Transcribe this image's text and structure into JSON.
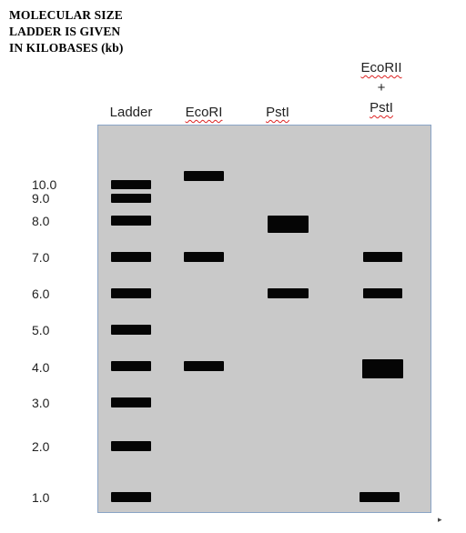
{
  "title_lines": [
    "MOLECULAR SIZE",
    "LADDER IS GIVEN",
    "IN KILOBASES (kb)"
  ],
  "lanes": [
    {
      "label": "Ladder",
      "sublabels": []
    },
    {
      "label": "EcoRI",
      "sublabels": []
    },
    {
      "label": "PstI",
      "sublabels": []
    },
    {
      "label": "EcoRII",
      "sublabels": [
        "+",
        "PstI"
      ]
    }
  ],
  "size_labels": [
    "10.0",
    "9.0",
    "8.0",
    "7.0",
    "6.0",
    "5.0",
    "4.0",
    "3.0",
    "2.0",
    "1.0"
  ],
  "bands": {
    "ladder": [
      10.0,
      9.0,
      8.0,
      7.0,
      6.0,
      5.0,
      4.0,
      3.0,
      2.0,
      1.0
    ],
    "ecori": [
      10.5,
      7.0,
      4.0
    ],
    "psti": [
      8.0,
      6.0
    ],
    "ecorii_psti": [
      7.0,
      6.0,
      4.0,
      1.0
    ]
  },
  "colors": {
    "gel": "#c9c9c9",
    "band": "#050505",
    "gel_border": "#8aa4c6"
  }
}
